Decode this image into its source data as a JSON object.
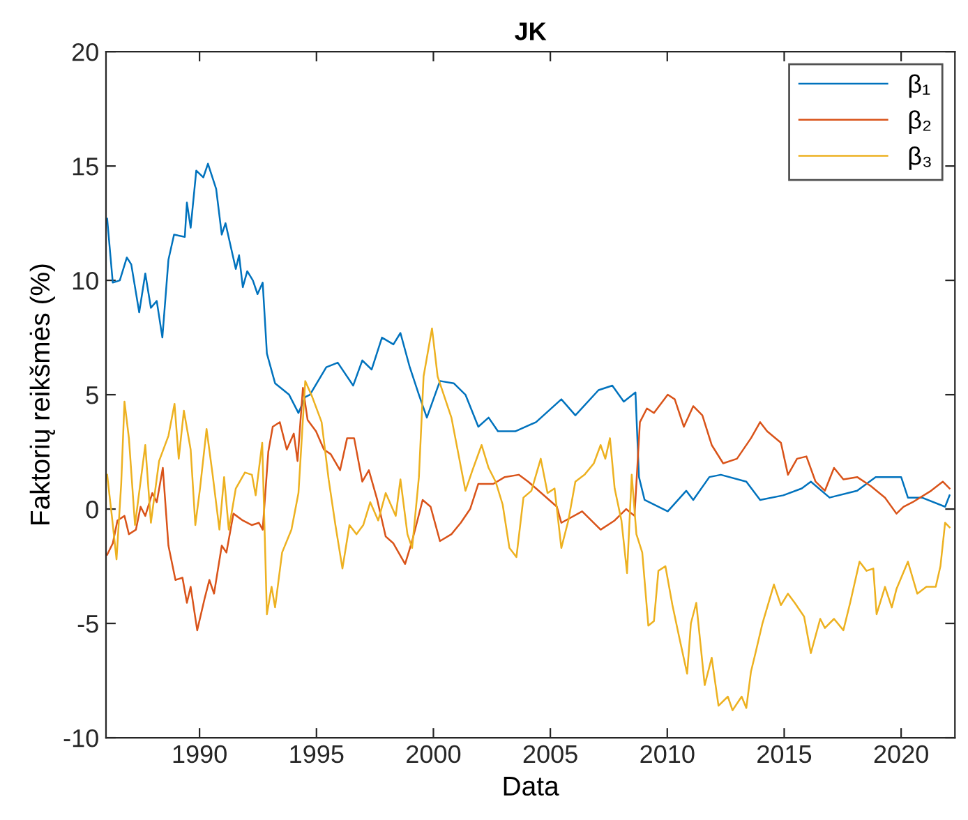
{
  "chart_data": {
    "type": "line",
    "title": "JK",
    "xlabel": "Data",
    "ylabel": "Faktorių reikšmės (%)",
    "xlim": [
      1986,
      2022.3
    ],
    "xticks": [
      1990,
      1995,
      2000,
      2005,
      2010,
      2015,
      2020
    ],
    "ylim": [
      -10,
      20
    ],
    "yticks": [
      -10,
      -5,
      0,
      5,
      10,
      15,
      20
    ],
    "grid": false,
    "legend": "top right",
    "marker": "none",
    "line_style": "solid",
    "series": [
      {
        "name": "β₁",
        "color": "#0072bd",
        "x": [
          1986.05,
          1986.29,
          1986.59,
          1986.89,
          1987.08,
          1987.42,
          1987.68,
          1987.92,
          1988.17,
          1988.41,
          1988.67,
          1988.91,
          1989.37,
          1989.46,
          1989.62,
          1989.86,
          1990.16,
          1990.36,
          1990.71,
          1990.95,
          1991.11,
          1991.55,
          1991.69,
          1991.85,
          1992.04,
          1992.28,
          1992.48,
          1992.7,
          1992.88,
          1993.23,
          1993.83,
          1994.23,
          1994.52,
          1994.72,
          1995.42,
          1995.91,
          1996.57,
          1996.96,
          1997.36,
          1997.8,
          1998.29,
          1998.59,
          1998.99,
          1999.38,
          1999.72,
          2000.28,
          2000.87,
          2001.37,
          2001.92,
          2002.36,
          2002.76,
          2003.5,
          2004.39,
          2005.47,
          2006.07,
          2007.06,
          2007.65,
          2008.14,
          2008.64,
          2008.79,
          2009.03,
          2010.02,
          2010.81,
          2011.11,
          2011.8,
          2012.29,
          2013.38,
          2013.97,
          2014.96,
          2015.75,
          2016.14,
          2016.94,
          2018.12,
          2018.91,
          2020.0,
          2020.29,
          2020.89,
          2021.88,
          2022.07
        ],
        "values": [
          12.7,
          9.9,
          10.0,
          11.0,
          10.7,
          8.6,
          10.3,
          8.8,
          9.1,
          7.5,
          10.9,
          12.0,
          11.9,
          13.4,
          12.3,
          14.8,
          14.5,
          15.1,
          14.0,
          12.0,
          12.5,
          10.5,
          11.1,
          9.7,
          10.4,
          10.0,
          9.4,
          9.9,
          6.8,
          5.5,
          5.0,
          4.2,
          4.9,
          5.0,
          6.2,
          6.4,
          5.4,
          6.5,
          6.1,
          7.5,
          7.2,
          7.7,
          6.2,
          5.0,
          4.0,
          5.6,
          5.5,
          5.0,
          3.6,
          4.0,
          3.4,
          3.4,
          3.8,
          4.8,
          4.1,
          5.2,
          5.4,
          4.7,
          5.1,
          1.4,
          0.4,
          -0.1,
          0.8,
          0.4,
          1.4,
          1.5,
          1.2,
          0.4,
          0.6,
          0.9,
          1.2,
          0.5,
          0.8,
          1.4,
          1.4,
          0.5,
          0.5,
          0.1,
          0.6
        ]
      },
      {
        "name": "β₂",
        "color": "#d95319",
        "x": [
          1986.05,
          1986.29,
          1986.49,
          1986.79,
          1986.98,
          1987.28,
          1987.48,
          1987.68,
          1987.98,
          1988.17,
          1988.43,
          1988.67,
          1988.97,
          1989.27,
          1989.46,
          1989.62,
          1989.9,
          1990.22,
          1990.42,
          1990.62,
          1990.95,
          1991.15,
          1991.45,
          1991.85,
          1992.24,
          1992.54,
          1992.7,
          1992.94,
          1993.13,
          1993.43,
          1993.73,
          1994.03,
          1994.19,
          1994.42,
          1994.62,
          1994.98,
          1995.32,
          1995.61,
          1996.01,
          1996.31,
          1996.61,
          1996.96,
          1997.24,
          1997.6,
          1997.96,
          1998.29,
          1998.79,
          1999.09,
          1999.54,
          1999.88,
          2000.28,
          2000.77,
          2001.17,
          2001.57,
          2001.92,
          2002.56,
          2003.05,
          2003.65,
          2004.05,
          2004.39,
          2005.28,
          2005.47,
          2006.36,
          2007.15,
          2007.75,
          2008.24,
          2008.6,
          2008.83,
          2009.13,
          2009.43,
          2010.02,
          2010.32,
          2010.71,
          2011.11,
          2011.5,
          2011.9,
          2012.39,
          2012.98,
          2013.58,
          2013.97,
          2014.27,
          2014.86,
          2015.16,
          2015.55,
          2015.95,
          2016.34,
          2016.74,
          2017.13,
          2017.53,
          2018.12,
          2018.71,
          2019.31,
          2019.8,
          2020.1,
          2020.49,
          2021.28,
          2021.78,
          2022.07
        ],
        "values": [
          -2.0,
          -1.5,
          -0.5,
          -0.3,
          -1.1,
          -0.9,
          0.1,
          -0.3,
          0.7,
          0.3,
          1.8,
          -1.6,
          -3.1,
          -3.0,
          -4.1,
          -3.4,
          -5.3,
          -3.9,
          -3.1,
          -3.7,
          -1.6,
          -1.9,
          -0.2,
          -0.5,
          -0.7,
          -0.6,
          -0.9,
          2.5,
          3.6,
          3.8,
          2.6,
          3.3,
          2.1,
          5.3,
          3.9,
          3.4,
          2.6,
          2.4,
          1.7,
          3.1,
          3.1,
          1.2,
          1.7,
          0.4,
          -1.2,
          -1.5,
          -2.4,
          -1.4,
          0.4,
          0.1,
          -1.4,
          -1.1,
          -0.6,
          0.0,
          1.1,
          1.1,
          1.4,
          1.5,
          1.2,
          0.9,
          0.1,
          -0.6,
          -0.1,
          -0.9,
          -0.5,
          0.0,
          -0.3,
          3.8,
          4.4,
          4.2,
          5.0,
          4.8,
          3.6,
          4.5,
          4.1,
          2.8,
          2.0,
          2.2,
          3.1,
          3.8,
          3.4,
          2.9,
          1.5,
          2.2,
          2.3,
          1.2,
          0.8,
          1.8,
          1.3,
          1.4,
          1.0,
          0.5,
          -0.2,
          0.1,
          0.3,
          0.8,
          1.2,
          0.9
        ]
      },
      {
        "name": "β₃",
        "color": "#edb120",
        "x": [
          1986.05,
          1986.25,
          1986.45,
          1986.65,
          1986.79,
          1986.98,
          1987.24,
          1987.44,
          1987.68,
          1987.92,
          1988.27,
          1988.67,
          1988.93,
          1989.11,
          1989.33,
          1989.62,
          1989.82,
          1990.02,
          1990.3,
          1990.56,
          1990.85,
          1991.05,
          1991.25,
          1991.55,
          1991.94,
          1992.24,
          1992.4,
          1992.68,
          1992.88,
          1993.08,
          1993.23,
          1993.53,
          1993.93,
          1994.23,
          1994.52,
          1994.82,
          1995.22,
          1995.52,
          1995.81,
          1996.11,
          1996.41,
          1996.71,
          1997.0,
          1997.3,
          1997.64,
          1997.96,
          1998.39,
          1998.59,
          1998.89,
          1999.09,
          1999.38,
          1999.58,
          1999.94,
          2000.18,
          2000.77,
          2001.37,
          2001.67,
          2002.06,
          2002.36,
          2002.66,
          2002.96,
          2003.25,
          2003.55,
          2003.85,
          2004.19,
          2004.59,
          2004.88,
          2005.18,
          2005.47,
          2005.77,
          2006.07,
          2006.46,
          2006.86,
          2007.15,
          2007.35,
          2007.55,
          2007.75,
          2008.04,
          2008.28,
          2008.48,
          2008.68,
          2008.93,
          2009.19,
          2009.43,
          2009.62,
          2009.92,
          2010.22,
          2010.51,
          2010.85,
          2011.01,
          2011.24,
          2011.6,
          2011.9,
          2012.19,
          2012.59,
          2012.79,
          2013.18,
          2013.38,
          2013.58,
          2013.77,
          2014.07,
          2014.56,
          2014.86,
          2015.16,
          2015.45,
          2015.85,
          2016.14,
          2016.54,
          2016.74,
          2017.13,
          2017.53,
          2017.82,
          2018.22,
          2018.52,
          2018.81,
          2018.95,
          2019.31,
          2019.6,
          2019.8,
          2020.29,
          2020.69,
          2021.08,
          2021.48,
          2021.68,
          2021.88,
          2022.07
        ],
        "values": [
          1.5,
          -0.3,
          -2.2,
          1.1,
          4.7,
          3.1,
          -0.7,
          0.9,
          2.8,
          -0.6,
          2.1,
          3.2,
          4.6,
          2.2,
          4.3,
          2.6,
          -0.7,
          0.9,
          3.5,
          1.5,
          -0.9,
          1.4,
          -0.9,
          0.9,
          1.6,
          1.5,
          0.6,
          2.9,
          -4.6,
          -3.4,
          -4.3,
          -1.9,
          -0.9,
          0.7,
          5.6,
          4.9,
          3.8,
          1.3,
          -0.7,
          -2.6,
          -0.7,
          -1.1,
          -0.7,
          0.3,
          -0.5,
          0.7,
          -0.3,
          1.3,
          -1.1,
          -1.7,
          1.4,
          5.8,
          7.9,
          5.8,
          4.0,
          0.8,
          1.7,
          2.8,
          1.8,
          1.2,
          0.2,
          -1.7,
          -2.1,
          0.5,
          0.8,
          2.2,
          0.7,
          0.9,
          -1.7,
          -0.5,
          1.2,
          1.5,
          2.0,
          2.8,
          2.2,
          3.1,
          0.9,
          -0.5,
          -2.8,
          1.5,
          -1.1,
          -1.9,
          -5.1,
          -4.9,
          -2.7,
          -2.5,
          -4.2,
          -5.6,
          -7.2,
          -5.0,
          -4.1,
          -7.7,
          -6.5,
          -8.6,
          -8.2,
          -8.8,
          -8.2,
          -8.7,
          -7.1,
          -6.3,
          -5.0,
          -3.3,
          -4.2,
          -3.7,
          -4.1,
          -4.7,
          -6.3,
          -4.8,
          -5.2,
          -4.8,
          -5.3,
          -4.1,
          -2.3,
          -2.7,
          -2.6,
          -4.6,
          -3.4,
          -4.3,
          -3.5,
          -2.3,
          -3.7,
          -3.4,
          -3.4,
          -2.5,
          -0.6,
          -0.8
        ]
      }
    ]
  }
}
